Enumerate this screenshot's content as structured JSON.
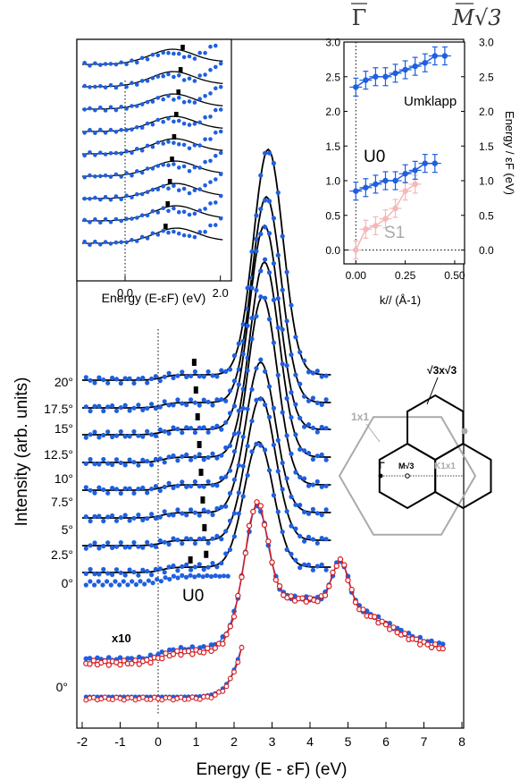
{
  "main_chart": {
    "type": "scatter",
    "xlabel": "Energy (E - εF) (eV)",
    "ylabel": "Intensity (arb. units)",
    "xlim": [
      -2,
      8
    ],
    "xticks": [
      "-2",
      "-1",
      "0",
      "1",
      "2",
      "3",
      "4",
      "5",
      "6",
      "7",
      "8"
    ],
    "angle_labels": [
      "20°",
      "17.5°",
      "15°",
      "12.5°",
      "10°",
      "7.5°",
      "5°",
      "2.5°",
      "0°"
    ],
    "bottom_angle_label": "0°",
    "x10_label": "x10",
    "u0_label": "U0",
    "series_colors": {
      "data": "#1f5fe0",
      "fit": "#000000",
      "red": "#d81c1c"
    }
  },
  "inset_spectra": {
    "xlabel": "Energy (E-εF) (eV)",
    "xticks": [
      "0.0",
      "2.0"
    ],
    "xlim": [
      -0.9,
      2.1
    ],
    "num_curves": 9
  },
  "dispersion_inset": {
    "xlabel": "k// (Å-1)",
    "ylabel": "Energy / εF (eV)",
    "xticks": [
      "0.00",
      "0.25",
      "0.50"
    ],
    "yticks": [
      "0.0",
      "0.5",
      "1.0",
      "1.5",
      "2.0",
      "2.5",
      "3.0"
    ],
    "xlim": [
      -0.06,
      0.55
    ],
    "ylim": [
      -0.2,
      3.0
    ],
    "top_left_label": "Γ",
    "top_right_label": "M√3",
    "umklapp_label": "Umklapp",
    "u0_label": "U0",
    "s1_label": "S1",
    "umklapp": {
      "k": [
        0.0,
        0.05,
        0.1,
        0.15,
        0.2,
        0.25,
        0.3,
        0.35,
        0.4,
        0.45
      ],
      "E": [
        2.35,
        2.45,
        2.5,
        2.5,
        2.55,
        2.6,
        2.65,
        2.7,
        2.8,
        2.8
      ]
    },
    "u0": {
      "k": [
        0.0,
        0.05,
        0.1,
        0.15,
        0.2,
        0.25,
        0.3,
        0.35,
        0.4
      ],
      "E": [
        0.85,
        0.9,
        0.95,
        1.0,
        1.0,
        1.1,
        1.15,
        1.25,
        1.25
      ]
    },
    "s1": {
      "k": [
        0.0,
        0.05,
        0.1,
        0.15,
        0.2,
        0.25,
        0.3
      ],
      "E": [
        0.0,
        0.3,
        0.35,
        0.45,
        0.6,
        0.85,
        0.95
      ]
    }
  },
  "bz_inset": {
    "label_1x1": "1x1",
    "label_sqrt3": "√3x√3",
    "label_gamma": "Γ",
    "label_m": "M√3",
    "label_k": "K1x1"
  }
}
